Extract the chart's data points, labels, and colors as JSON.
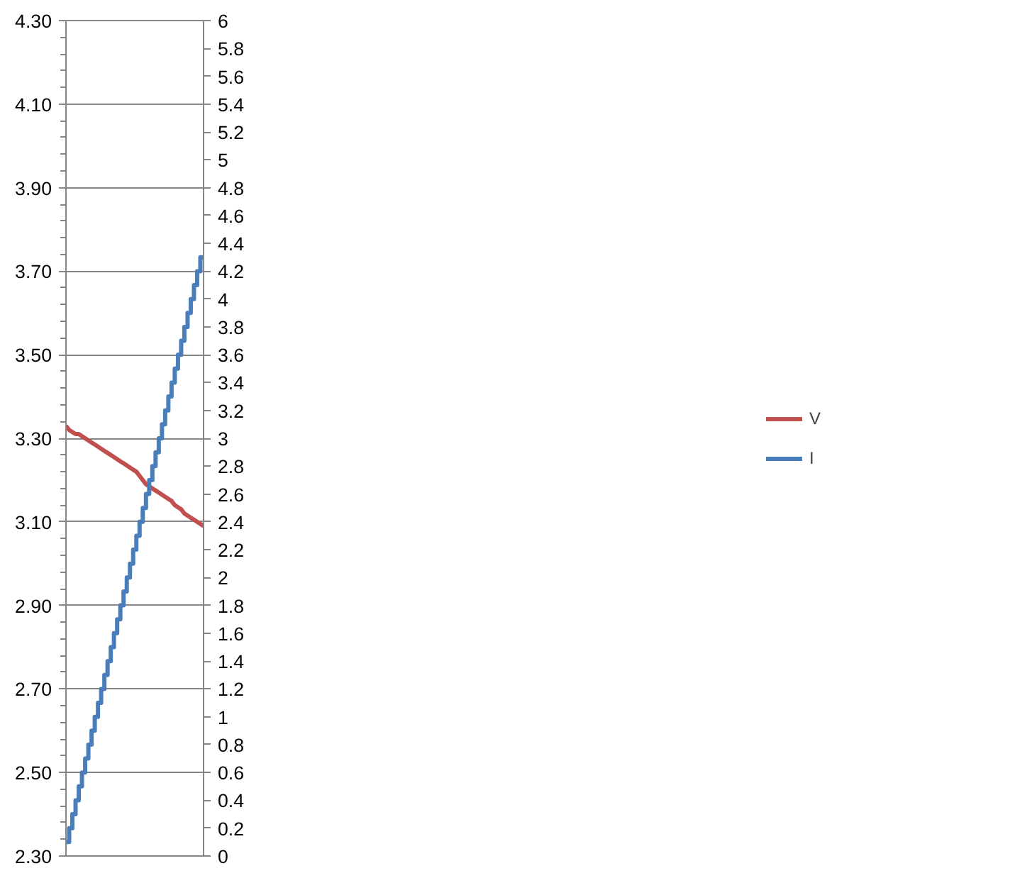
{
  "chart_data": {
    "type": "line",
    "categories": [
      null,
      null,
      null,
      null,
      null,
      null,
      null,
      null,
      null,
      null,
      null,
      null,
      null,
      null,
      null,
      null,
      null,
      null,
      null,
      null,
      null,
      null,
      null,
      null,
      null,
      null,
      null,
      null,
      null,
      null,
      null,
      null,
      null,
      null,
      null,
      null,
      null,
      null,
      null,
      null,
      null,
      null,
      null,
      null
    ],
    "series": [
      {
        "name": "V",
        "color": "#c0504d",
        "values": [
          3.33,
          3.32,
          3.315,
          3.31,
          3.31,
          3.305,
          3.3,
          3.295,
          3.29,
          3.285,
          3.28,
          3.275,
          3.27,
          3.265,
          3.26,
          3.255,
          3.25,
          3.245,
          3.24,
          3.235,
          3.23,
          3.225,
          3.22,
          3.21,
          3.2,
          3.19,
          3.185,
          3.18,
          3.175,
          3.17,
          3.165,
          3.16,
          3.155,
          3.15,
          3.14,
          3.135,
          3.13,
          3.12,
          3.115,
          3.11,
          3.105,
          3.1,
          3.095,
          3.09
        ]
      },
      {
        "name": "I",
        "color": "#4a7ebb",
        "type": "step",
        "axis": "y2",
        "values": [
          0.1,
          0.2,
          0.3,
          0.4,
          0.5,
          0.6,
          0.7,
          0.8,
          0.9,
          1.0,
          1.1,
          1.2,
          1.3,
          1.4,
          1.5,
          1.6,
          1.7,
          1.8,
          1.9,
          2.0,
          2.1,
          2.2,
          2.3,
          2.4,
          2.5,
          2.6,
          2.7,
          2.8,
          2.9,
          3.0,
          3.1,
          3.2,
          3.3,
          3.4,
          3.5,
          3.6,
          3.7,
          3.8,
          3.9,
          4.0,
          4.1,
          4.2,
          4.3,
          4.3
        ]
      }
    ],
    "ylim": [
      2.3,
      4.3
    ],
    "yticks": [
      {
        "value": 2.3,
        "label": "2.30"
      },
      {
        "value": 2.34,
        "label": null
      },
      {
        "value": 2.38,
        "label": null
      },
      {
        "value": 2.42,
        "label": null
      },
      {
        "value": 2.46,
        "label": null
      },
      {
        "value": 2.5,
        "label": "2.50"
      },
      {
        "value": 2.54,
        "label": null
      },
      {
        "value": 2.58,
        "label": null
      },
      {
        "value": 2.62,
        "label": null
      },
      {
        "value": 2.66,
        "label": null
      },
      {
        "value": 2.7,
        "label": "2.70"
      },
      {
        "value": 2.74,
        "label": null
      },
      {
        "value": 2.78,
        "label": null
      },
      {
        "value": 2.82,
        "label": null
      },
      {
        "value": 2.86,
        "label": null
      },
      {
        "value": 2.9,
        "label": "2.90"
      },
      {
        "value": 2.94,
        "label": null
      },
      {
        "value": 2.98,
        "label": null
      },
      {
        "value": 3.02,
        "label": null
      },
      {
        "value": 3.06,
        "label": null
      },
      {
        "value": 3.1,
        "label": "3.10"
      },
      {
        "value": 3.14,
        "label": null
      },
      {
        "value": 3.18,
        "label": null
      },
      {
        "value": 3.22,
        "label": null
      },
      {
        "value": 3.26,
        "label": null
      },
      {
        "value": 3.3,
        "label": "3.30"
      },
      {
        "value": 3.34,
        "label": null
      },
      {
        "value": 3.38,
        "label": null
      },
      {
        "value": 3.42,
        "label": null
      },
      {
        "value": 3.46,
        "label": null
      },
      {
        "value": 3.5,
        "label": "3.50"
      },
      {
        "value": 3.54,
        "label": null
      },
      {
        "value": 3.58,
        "label": null
      },
      {
        "value": 3.62,
        "label": null
      },
      {
        "value": 3.66,
        "label": null
      },
      {
        "value": 3.7,
        "label": "3.70"
      },
      {
        "value": 3.74,
        "label": null
      },
      {
        "value": 3.78,
        "label": null
      },
      {
        "value": 3.82,
        "label": null
      },
      {
        "value": 3.86,
        "label": null
      },
      {
        "value": 3.9,
        "label": "3.90"
      },
      {
        "value": 3.94,
        "label": null
      },
      {
        "value": 3.98,
        "label": null
      },
      {
        "value": 4.02,
        "label": null
      },
      {
        "value": 4.06,
        "label": null
      },
      {
        "value": 4.1,
        "label": "4.10"
      },
      {
        "value": 4.14,
        "label": null
      },
      {
        "value": 4.18,
        "label": null
      },
      {
        "value": 4.22,
        "label": null
      },
      {
        "value": 4.26,
        "label": null
      },
      {
        "value": 4.3,
        "label": "4.30"
      }
    ],
    "y2lim": [
      0,
      6
    ],
    "y2ticks": [
      0,
      0.2,
      0.4,
      0.6,
      0.8,
      1,
      1.2,
      1.4,
      1.6,
      1.8,
      2,
      2.2,
      2.4,
      2.6,
      2.8,
      3,
      3.2,
      3.4,
      3.6,
      3.8,
      4,
      4.2,
      4.4,
      4.6,
      4.8,
      5,
      5.2,
      5.4,
      5.6,
      5.8,
      6
    ],
    "grid": "y",
    "legend": "right"
  }
}
